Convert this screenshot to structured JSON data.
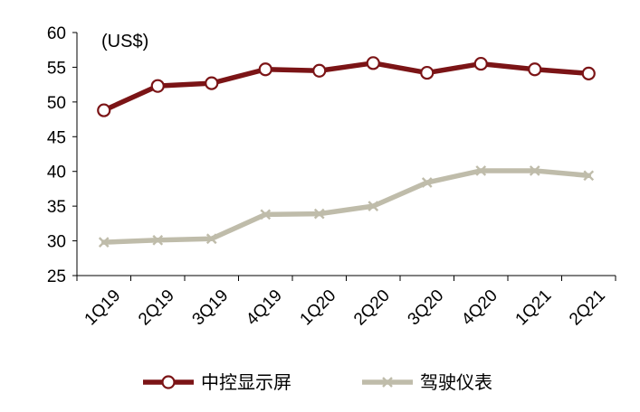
{
  "chart_data": {
    "type": "line",
    "unit_label": "(US$)",
    "categories": [
      "1Q19",
      "2Q19",
      "3Q19",
      "4Q19",
      "1Q20",
      "2Q20",
      "3Q20",
      "4Q20",
      "1Q21",
      "2Q21"
    ],
    "ylim": [
      25,
      60
    ],
    "yticks": [
      25,
      30,
      35,
      40,
      45,
      50,
      55,
      60
    ],
    "grid": false,
    "legend_position": "bottom",
    "series": [
      {
        "name": "中控显示屏",
        "color": "#7b1416",
        "marker": "hollow-circle",
        "values": [
          48.8,
          52.3,
          52.7,
          54.7,
          54.5,
          55.6,
          54.2,
          55.5,
          54.7,
          54.1
        ]
      },
      {
        "name": "驾驶仪表",
        "color": "#bfbcaa",
        "marker": "x",
        "values": [
          29.8,
          30.1,
          30.3,
          33.8,
          33.9,
          35.0,
          38.4,
          40.1,
          40.1,
          39.4
        ]
      }
    ]
  }
}
